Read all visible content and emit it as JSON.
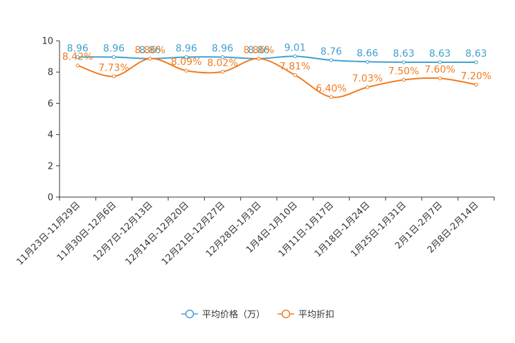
{
  "chart_data": {
    "type": "line",
    "title": "",
    "xlabel": "",
    "ylabel": "",
    "ylim": [
      0,
      10
    ],
    "yticks": [
      0,
      2,
      4,
      6,
      8,
      10
    ],
    "legend_position": "bottom-center",
    "grid": false,
    "categories": [
      "11月23日-11月29日",
      "11月30日-12月6日",
      "12月7日-12月13日",
      "12月14日-12月20日",
      "12月21日-12月27日",
      "12月28日-1月3日",
      "1月4日-1月10日",
      "1月11日-1月17日",
      "1月18日-1月24日",
      "1月25日-1月31日",
      "2月1日-2月7日",
      "2月8日-2月14日"
    ],
    "series": [
      {
        "name": "平均价格（万）",
        "color": "#3fa0cf",
        "values": [
          8.96,
          8.96,
          8.86,
          8.96,
          8.96,
          8.86,
          9.01,
          8.76,
          8.66,
          8.63,
          8.63,
          8.63
        ],
        "labels": [
          "8.96",
          "8.96",
          "8.86",
          "8.96",
          "8.96",
          "8.86",
          "9.01",
          "8.76",
          "8.66",
          "8.63",
          "8.63",
          "8.63"
        ]
      },
      {
        "name": "平均折扣",
        "color": "#f07b1f",
        "values": [
          8.42,
          7.73,
          8.86,
          8.09,
          8.02,
          8.86,
          7.81,
          6.4,
          7.03,
          7.5,
          7.6,
          7.2
        ],
        "labels": [
          "8.42%",
          "7.73%",
          "8.86%",
          "8.09%",
          "8.02%",
          "8.86%",
          "7.81%",
          "6.40%",
          "7.03%",
          "7.50%",
          "7.60%",
          "7.20%"
        ]
      }
    ]
  }
}
